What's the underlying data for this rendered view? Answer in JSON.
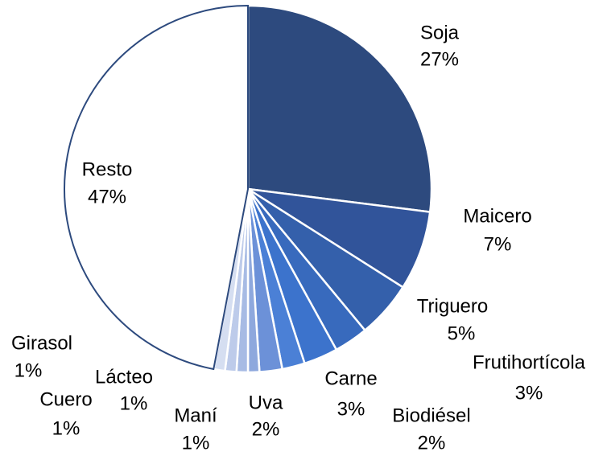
{
  "chart_data": {
    "type": "pie",
    "categories": [
      "Soja",
      "Maicero",
      "Triguero",
      "Frutihortícola",
      "Carne",
      "Biodiésel",
      "Uva",
      "Maní",
      "Lácteo",
      "Cuero",
      "Girasol",
      "Resto"
    ],
    "values": [
      27,
      7,
      5,
      3,
      3,
      2,
      2,
      1,
      1,
      1,
      1,
      47
    ],
    "value_labels": [
      "27%",
      "7%",
      "5%",
      "3%",
      "3%",
      "2%",
      "2%",
      "1%",
      "1%",
      "1%",
      "1%",
      "47%"
    ],
    "colors": [
      "#2d4a7e",
      "#31549a",
      "#3460ab",
      "#386abd",
      "#3c73cc",
      "#4b80d6",
      "#6c91d8",
      "#8ea8dd",
      "#a7bbe4",
      "#bdcbea",
      "#d5def1",
      "#ffffff"
    ]
  }
}
